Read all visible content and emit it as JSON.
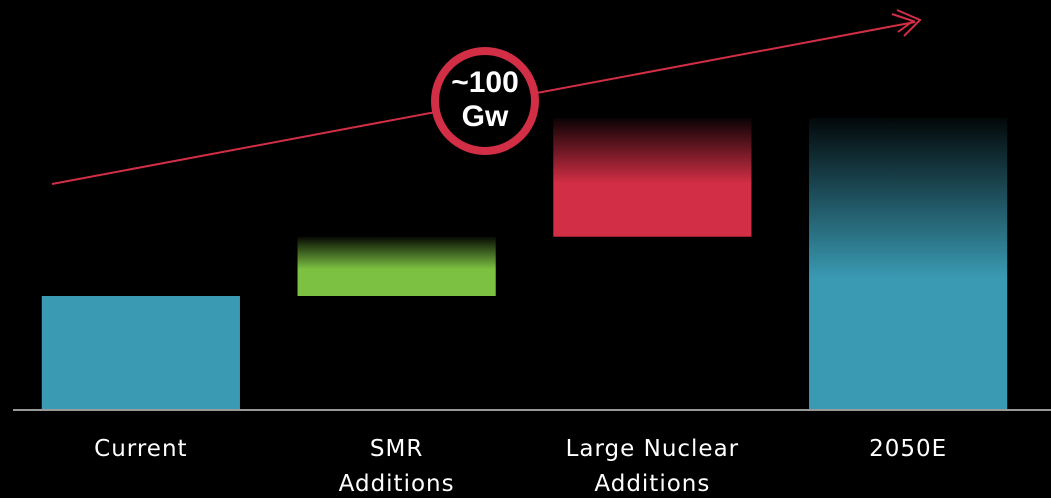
{
  "chart_data": {
    "type": "waterfall",
    "categories": [
      [
        "Current"
      ],
      [
        "SMR",
        "Additions"
      ],
      [
        "Large Nuclear",
        "Additions"
      ],
      [
        "2050E"
      ]
    ],
    "values": [
      100,
      52,
      104,
      256
    ],
    "totals": [
      false,
      false,
      false,
      true
    ],
    "colors": [
      "#3a9ab3",
      "#7dc142",
      "#d22e45",
      "#3a9ab3"
    ],
    "faded": [
      false,
      true,
      true,
      true
    ],
    "ylim": [
      0,
      260
    ],
    "annotation": [
      "~100",
      "Gw"
    ],
    "annotation_color": "#d22e45"
  }
}
